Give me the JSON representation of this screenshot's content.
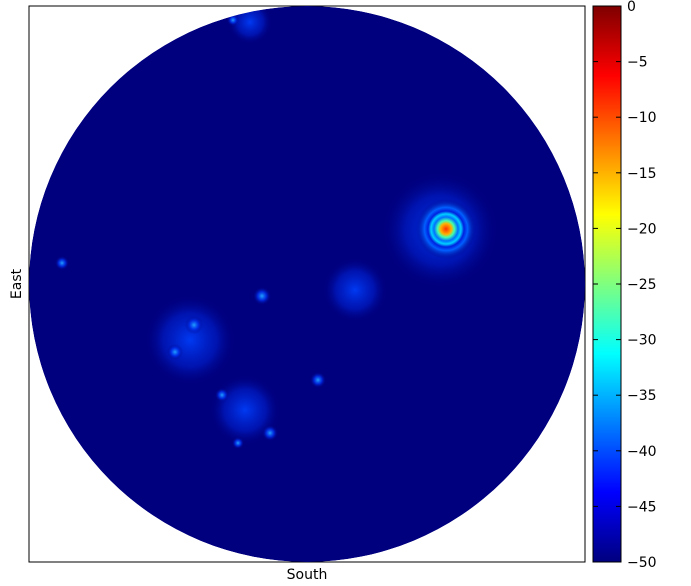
{
  "chart_data": {
    "type": "heatmap",
    "xlabel": "South",
    "ylabel": "East",
    "colormap": [
      "#00007f",
      "#0000ff",
      "#007fff",
      "#00ffff",
      "#7fff7f",
      "#ffff00",
      "#ff7f00",
      "#ff0000",
      "#7f0000"
    ],
    "zlim": [
      -50,
      0
    ],
    "zticks": [
      {
        "value": -50,
        "label": "−50"
      },
      {
        "value": -45,
        "label": "−45"
      },
      {
        "value": -40,
        "label": "−40"
      },
      {
        "value": -35,
        "label": "−35"
      },
      {
        "value": -30,
        "label": "−30"
      },
      {
        "value": -25,
        "label": "−25"
      },
      {
        "value": -20,
        "label": "−20"
      },
      {
        "value": -15,
        "label": "−15"
      },
      {
        "value": -10,
        "label": "−10"
      },
      {
        "value": -5,
        "label": "−5"
      },
      0
    ]
  }
}
